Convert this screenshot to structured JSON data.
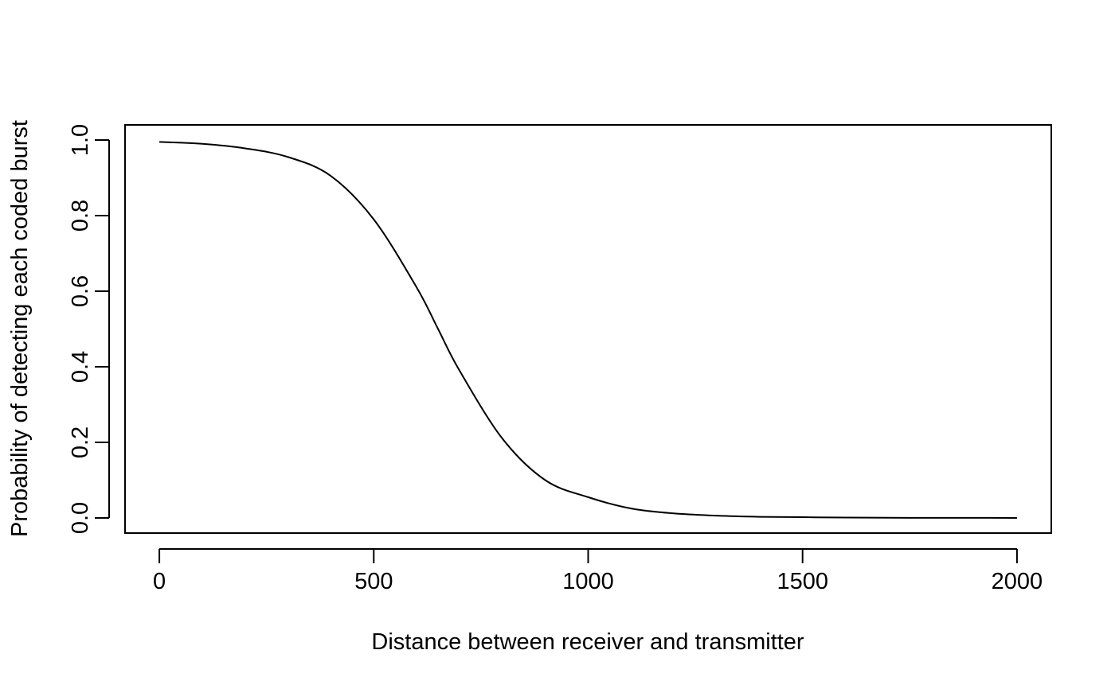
{
  "chart_data": {
    "type": "line",
    "title": "",
    "xlabel": "Distance between receiver and transmitter",
    "ylabel": "Probability of detecting each coded burst",
    "xlim": [
      -80,
      2080
    ],
    "ylim": [
      -0.04,
      1.04
    ],
    "xticks": [
      0,
      500,
      1000,
      1500,
      2000
    ],
    "yticks": [
      0.0,
      0.2,
      0.4,
      0.6,
      0.8,
      1.0
    ],
    "xtick_labels": [
      "0",
      "500",
      "1000",
      "1500",
      "2000"
    ],
    "ytick_labels": [
      "0.0",
      "0.2",
      "0.4",
      "0.6",
      "0.8",
      "1.0"
    ],
    "grid": false,
    "legend": "none",
    "line_color": "#000000",
    "series": [
      {
        "x": [
          0,
          100,
          200,
          300,
          400,
          500,
          600,
          650,
          700,
          800,
          900,
          1000,
          1100,
          1200,
          1300,
          1400,
          1500,
          1600,
          1700,
          1800,
          1900,
          2000
        ],
        "values": [
          0.995,
          0.99,
          0.978,
          0.955,
          0.905,
          0.79,
          0.61,
          0.5,
          0.39,
          0.21,
          0.1,
          0.055,
          0.025,
          0.012,
          0.006,
          0.003,
          0.002,
          0.001,
          0.0005,
          0.0003,
          0.0002,
          0.0001
        ]
      }
    ]
  }
}
